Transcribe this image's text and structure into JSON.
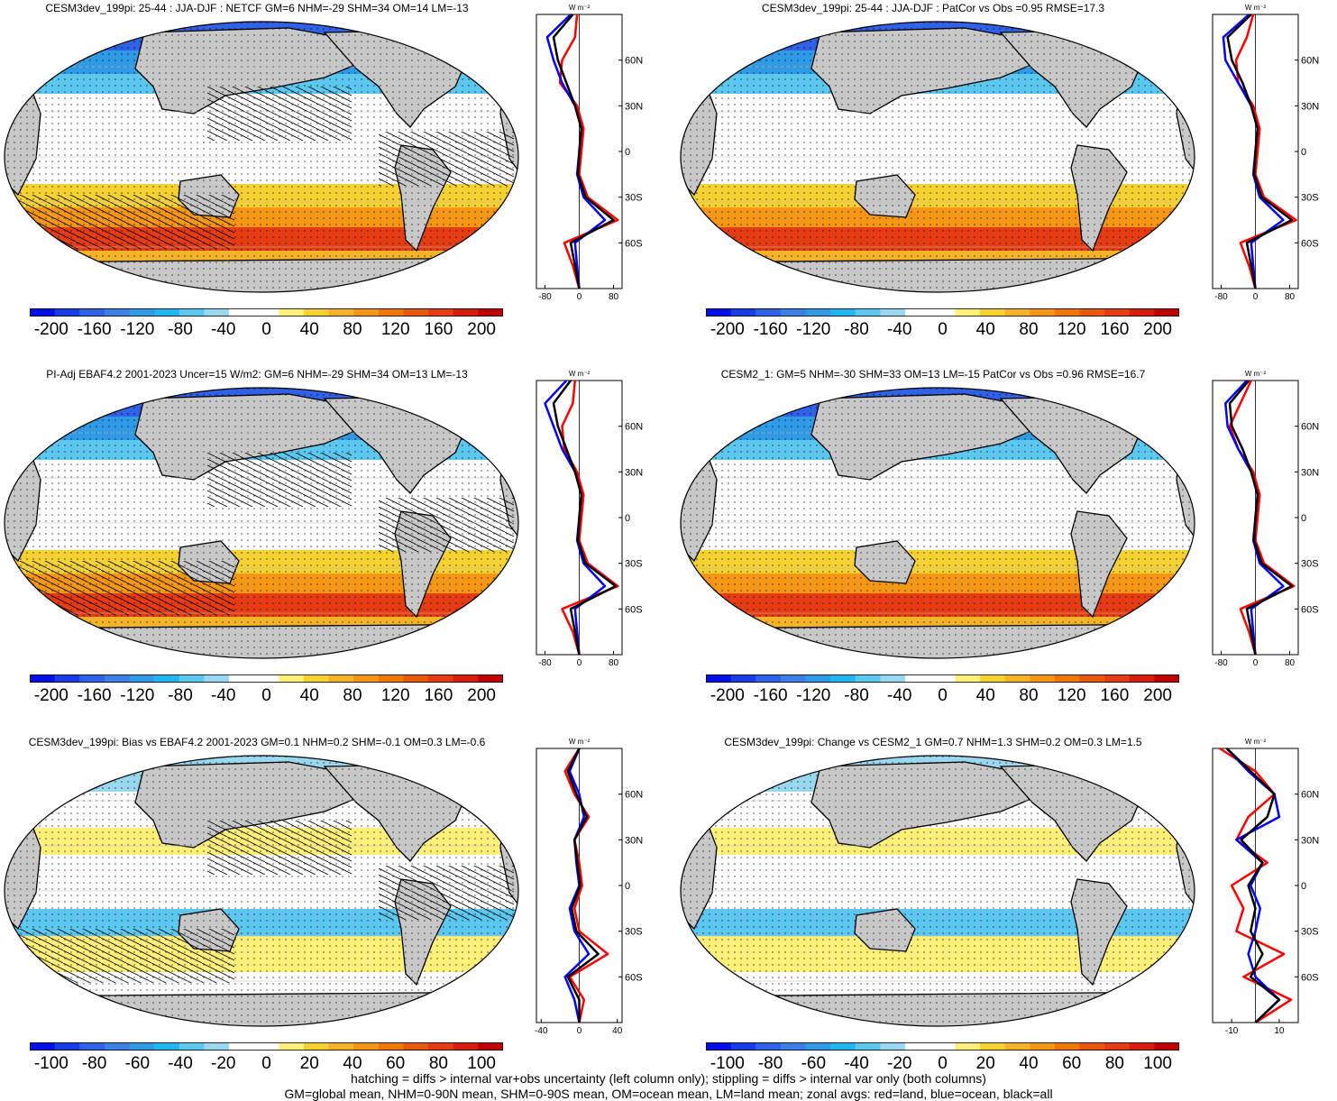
{
  "chart_data": [
    {
      "type": "heatmap",
      "title": "CESM3dev_199pi: 25-44 : JJA-DJF : NETCF GM=6 NHM=-29 SHM=34 OM=14 LM=-13",
      "colorbar_ticks": [
        "-200",
        "-160",
        "-120",
        "-80",
        "-40",
        "0",
        "40",
        "80",
        "120",
        "160",
        "200"
      ],
      "colorbar_range": [
        -220,
        220
      ],
      "zonal": {
        "unit_label": "W m⁻²",
        "xlim": [
          -100,
          100
        ],
        "xticks": [
          "-80",
          "0",
          "80"
        ],
        "ylim": [
          -90,
          90
        ],
        "yticks": [
          "60N",
          "30N",
          "0",
          "30S",
          "60S"
        ],
        "lat": [
          90,
          75,
          60,
          45,
          30,
          15,
          0,
          -15,
          -30,
          -45,
          -60,
          -75,
          -90
        ],
        "series": [
          {
            "color": "#ff0000",
            "values": [
              -5,
              -10,
              -40,
              -45,
              -5,
              10,
              5,
              0,
              20,
              90,
              -35,
              -15,
              0
            ]
          },
          {
            "color": "#0000ff",
            "values": [
              -20,
              -75,
              -60,
              -40,
              -10,
              5,
              0,
              -5,
              10,
              60,
              -10,
              -5,
              0
            ]
          },
          {
            "color": "#000000",
            "values": [
              -15,
              -60,
              -50,
              -30,
              -10,
              5,
              0,
              -3,
              15,
              80,
              -20,
              -10,
              0
            ]
          }
        ]
      }
    },
    {
      "type": "heatmap",
      "title": "CESM3dev_199pi: 25-44 : JJA-DJF : PatCor vs Obs =0.95 RMSE=17.3",
      "colorbar_ticks": [
        "-200",
        "-160",
        "-120",
        "-80",
        "-40",
        "0",
        "40",
        "80",
        "120",
        "160",
        "200"
      ],
      "colorbar_range": [
        -220,
        220
      ],
      "zonal": {
        "unit_label": "W m⁻²",
        "xlim": [
          -100,
          100
        ],
        "xticks": [
          "-80",
          "0",
          "80"
        ],
        "ylim": [
          -90,
          90
        ],
        "yticks": [
          "60N",
          "30N",
          "0",
          "30S",
          "60S"
        ],
        "lat": [
          90,
          75,
          60,
          45,
          30,
          15,
          0,
          -15,
          -30,
          -45,
          -60,
          -75,
          -90
        ],
        "series": [
          {
            "color": "#ff0000",
            "values": [
              -5,
              -20,
              -45,
              -40,
              -5,
              10,
              5,
              0,
              20,
              95,
              -35,
              -15,
              0
            ]
          },
          {
            "color": "#0000ff",
            "values": [
              -15,
              -75,
              -70,
              -40,
              -10,
              5,
              0,
              -5,
              10,
              65,
              -10,
              -5,
              0
            ]
          },
          {
            "color": "#000000",
            "values": [
              -10,
              -65,
              -55,
              -30,
              -10,
              5,
              0,
              -3,
              15,
              85,
              -20,
              -10,
              0
            ]
          }
        ]
      }
    },
    {
      "type": "heatmap",
      "title": "PI-Adj EBAF4.2 2001-2023 Uncer=15 W/m2: GM=6 NHM=-29 SHM=34 OM=13 LM=-13",
      "colorbar_ticks": [
        "-200",
        "-160",
        "-120",
        "-80",
        "-40",
        "0",
        "40",
        "80",
        "120",
        "160",
        "200"
      ],
      "colorbar_range": [
        -220,
        220
      ],
      "zonal": {
        "unit_label": "W m⁻²",
        "xlim": [
          -100,
          100
        ],
        "xticks": [
          "-80",
          "0",
          "80"
        ],
        "ylim": [
          -90,
          90
        ],
        "yticks": [
          "60N",
          "30N",
          "0",
          "30S",
          "60S"
        ],
        "lat": [
          90,
          75,
          60,
          45,
          30,
          15,
          0,
          -15,
          -30,
          -45,
          -60,
          -75,
          -90
        ],
        "series": [
          {
            "color": "#ff0000",
            "values": [
              -10,
              -15,
              -40,
              -35,
              -5,
              10,
              5,
              0,
              20,
              90,
              -40,
              -15,
              0
            ]
          },
          {
            "color": "#0000ff",
            "values": [
              -30,
              -80,
              -60,
              -40,
              -10,
              5,
              0,
              -5,
              10,
              60,
              -10,
              -5,
              0
            ]
          },
          {
            "color": "#000000",
            "values": [
              -20,
              -60,
              -50,
              -30,
              -10,
              5,
              0,
              -3,
              15,
              85,
              -20,
              -10,
              0
            ]
          }
        ]
      }
    },
    {
      "type": "heatmap",
      "title": "CESM2_1: GM=5 NHM=-30 SHM=33 OM=13 LM=-15 PatCor vs Obs =0.96 RMSE=16.7",
      "colorbar_ticks": [
        "-200",
        "-160",
        "-120",
        "-80",
        "-40",
        "0",
        "40",
        "80",
        "120",
        "160",
        "200"
      ],
      "colorbar_range": [
        -220,
        220
      ],
      "zonal": {
        "unit_label": "W m⁻²",
        "xlim": [
          -100,
          100
        ],
        "xticks": [
          "-80",
          "0",
          "80"
        ],
        "ylim": [
          -90,
          90
        ],
        "yticks": [
          "60N",
          "30N",
          "0",
          "30S",
          "60S"
        ],
        "lat": [
          90,
          75,
          60,
          45,
          30,
          15,
          0,
          -15,
          -30,
          -45,
          -60,
          -75,
          -90
        ],
        "series": [
          {
            "color": "#ff0000",
            "values": [
              -10,
              -35,
              -60,
              -40,
              -5,
              10,
              5,
              0,
              20,
              90,
              -35,
              -15,
              0
            ]
          },
          {
            "color": "#0000ff",
            "values": [
              -20,
              -70,
              -65,
              -40,
              -10,
              5,
              0,
              -5,
              10,
              65,
              -10,
              -5,
              0
            ]
          },
          {
            "color": "#000000",
            "values": [
              -15,
              -60,
              -55,
              -30,
              -10,
              5,
              0,
              -3,
              15,
              85,
              -20,
              -10,
              0
            ]
          }
        ]
      }
    },
    {
      "type": "heatmap",
      "title": "CESM3dev_199pi: Bias vs EBAF4.2 2001-2023 GM=0.1 NHM=0.2 SHM=-0.1 OM=0.3 LM=-0.6",
      "colorbar_ticks": [
        "-100",
        "-80",
        "-60",
        "-40",
        "-20",
        "0",
        "20",
        "40",
        "60",
        "80",
        "100"
      ],
      "colorbar_range": [
        -110,
        110
      ],
      "zonal": {
        "unit_label": "W m⁻²",
        "xlim": [
          -45,
          45
        ],
        "xticks": [
          "-40",
          "0",
          "40"
        ],
        "ylim": [
          -90,
          90
        ],
        "yticks": [
          "60N",
          "30N",
          "0",
          "30S",
          "60S"
        ],
        "lat": [
          90,
          75,
          60,
          45,
          30,
          15,
          0,
          -15,
          -30,
          -45,
          -60,
          -75,
          -90
        ],
        "series": [
          {
            "color": "#ff0000",
            "values": [
              0,
              -15,
              -5,
              10,
              -5,
              0,
              3,
              -5,
              0,
              30,
              -10,
              5,
              0
            ]
          },
          {
            "color": "#0000ff",
            "values": [
              0,
              -10,
              0,
              5,
              -5,
              -3,
              0,
              -10,
              -5,
              10,
              -15,
              -5,
              0
            ]
          },
          {
            "color": "#000000",
            "values": [
              0,
              -12,
              -3,
              8,
              -5,
              -2,
              1,
              -8,
              -3,
              20,
              -12,
              0,
              0
            ]
          }
        ]
      }
    },
    {
      "type": "heatmap",
      "title": "CESM3dev_199pi: Change vs CESM2_1 GM=0.7 NHM=1.3 SHM=0.2 OM=0.3 LM=1.5",
      "colorbar_ticks": [
        "-100",
        "-80",
        "-60",
        "-40",
        "-20",
        "0",
        "20",
        "40",
        "60",
        "80",
        "100"
      ],
      "colorbar_range": [
        -110,
        110
      ],
      "zonal": {
        "unit_label": "W m⁻²",
        "xlim": [
          -18,
          18
        ],
        "xticks": [
          "-10",
          "10"
        ],
        "ylim": [
          -90,
          90
        ],
        "yticks": [
          "60N",
          "30N",
          "0",
          "30S",
          "60S"
        ],
        "lat": [
          90,
          75,
          60,
          45,
          30,
          15,
          0,
          -15,
          -30,
          -45,
          -60,
          -75,
          -90
        ],
        "series": [
          {
            "color": "#ff0000",
            "values": [
              -15,
              0,
              8,
              -3,
              -8,
              5,
              -10,
              -5,
              -8,
              12,
              -5,
              15,
              0
            ]
          },
          {
            "color": "#0000ff",
            "values": [
              -12,
              -3,
              8,
              10,
              -8,
              3,
              -2,
              2,
              0,
              -3,
              0,
              10,
              0
            ]
          },
          {
            "color": "#000000",
            "values": [
              -12,
              -2,
              8,
              5,
              -6,
              3,
              -3,
              0,
              -2,
              3,
              -2,
              10,
              0
            ]
          }
        ]
      }
    }
  ],
  "footnote": {
    "line1": "hatching = diffs > internal var+obs uncertainty (left column only); stippling = diffs > internal var only (both columns)",
    "line2": "GM=global mean, NHM=0-90N mean, SHM=0-90S mean, OM=ocean mean, LM=land mean; zonal avgs: red=land, blue=ocean, black=all"
  },
  "colors": {
    "land": "#c8c8c8",
    "colormap": [
      "#0010e8",
      "#1a3ce6",
      "#2f62e6",
      "#3c7fe6",
      "#2f9be6",
      "#22b6f0",
      "#5cc8f0",
      "#9ad8f0",
      "#ffffff",
      "#ffffff",
      "#fff07a",
      "#f5d232",
      "#f5b428",
      "#f59614",
      "#f07800",
      "#e85a0a",
      "#e63c14",
      "#d81e0a",
      "#c00000"
    ]
  }
}
